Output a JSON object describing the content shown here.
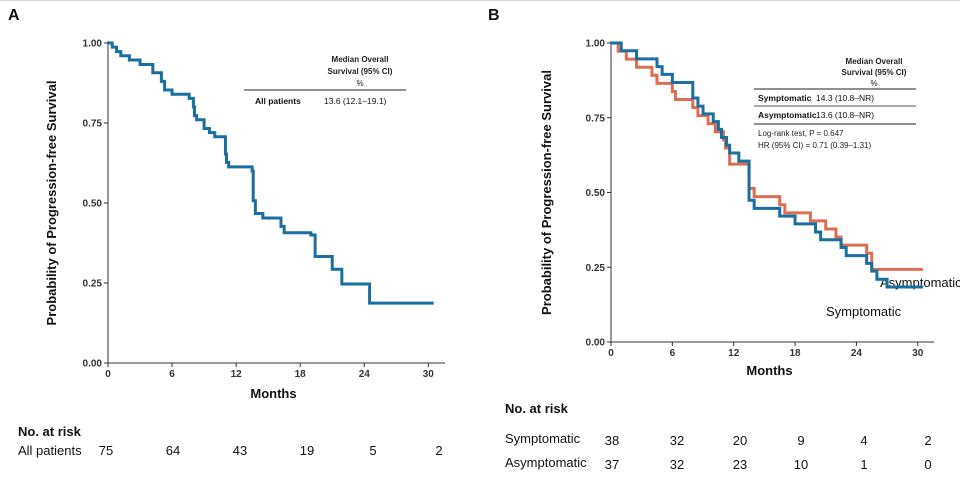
{
  "panels": {
    "a_label": "A",
    "b_label": "B"
  },
  "colors": {
    "symptomatic": "#1a6fa0",
    "asymptomatic": "#dd6e52",
    "all": "#1a6fa0",
    "axis": "#333333"
  },
  "risk_table": {
    "title": "No. at risk",
    "a": {
      "rows": [
        {
          "label": "All patients",
          "values": [
            "75",
            "64",
            "43",
            "19",
            "5",
            "2"
          ]
        }
      ]
    },
    "b": {
      "rows": [
        {
          "label": "Symptomatic",
          "values": [
            "38",
            "32",
            "20",
            "9",
            "4",
            "2"
          ]
        },
        {
          "label": "Asymptomatic",
          "values": [
            "37",
            "32",
            "23",
            "10",
            "1",
            "0"
          ]
        }
      ]
    }
  },
  "chart_data": [
    {
      "type": "line",
      "subtype": "kaplan-meier",
      "panel": "A",
      "xlabel": "Months",
      "ylabel": "Probability of Progression-free Survival",
      "xlim": [
        0,
        31
      ],
      "ylim": [
        0,
        1
      ],
      "xticks": [
        0,
        6,
        12,
        18,
        24,
        30
      ],
      "yticks": [
        "0.00",
        "0.25",
        "0.50",
        "0.75",
        "1.00"
      ],
      "series": [
        {
          "name": "All patients",
          "color_key": "all",
          "points": [
            [
              0,
              1.0
            ],
            [
              0.4,
              0.987
            ],
            [
              0.8,
              0.973
            ],
            [
              1.2,
              0.96
            ],
            [
              2,
              0.947
            ],
            [
              3,
              0.933
            ],
            [
              4.2,
              0.907
            ],
            [
              5,
              0.88
            ],
            [
              5.3,
              0.853
            ],
            [
              6,
              0.84
            ],
            [
              7.6,
              0.827
            ],
            [
              8,
              0.8
            ],
            [
              8.1,
              0.773
            ],
            [
              8.3,
              0.76
            ],
            [
              9,
              0.733
            ],
            [
              9.5,
              0.72
            ],
            [
              10,
              0.707
            ],
            [
              11,
              0.653
            ],
            [
              11.1,
              0.627
            ],
            [
              11.3,
              0.613
            ],
            [
              12.5,
              0.613
            ],
            [
              13.5,
              0.6
            ],
            [
              13.6,
              0.507
            ],
            [
              13.8,
              0.467
            ],
            [
              14.5,
              0.453
            ],
            [
              16.2,
              0.427
            ],
            [
              16.5,
              0.407
            ],
            [
              19,
              0.4
            ],
            [
              19.4,
              0.333
            ],
            [
              21,
              0.293
            ],
            [
              21.9,
              0.247
            ],
            [
              24.5,
              0.187
            ],
            [
              30.5,
              0.187
            ]
          ]
        }
      ],
      "legend_table": {
        "header": [
          "Median Overall",
          "Survival (95% CI)",
          "%"
        ],
        "rows": [
          [
            "All patients",
            "13.6 (12.1–19.1)"
          ]
        ]
      }
    },
    {
      "type": "line",
      "subtype": "kaplan-meier",
      "panel": "B",
      "xlabel": "Months",
      "ylabel": "Probability of Progression-free Survival",
      "xlim": [
        0,
        31
      ],
      "ylim": [
        0,
        1
      ],
      "xticks": [
        0,
        6,
        12,
        18,
        24,
        30
      ],
      "yticks": [
        "0.00",
        "0.25",
        "0.50",
        "0.75",
        "1.00"
      ],
      "series": [
        {
          "name": "Asymptomatic",
          "color_key": "asymptomatic",
          "end_label": "Asymptomatic",
          "points": [
            [
              0,
              1.0
            ],
            [
              0.7,
              0.973
            ],
            [
              1.5,
              0.946
            ],
            [
              2.5,
              0.919
            ],
            [
              4,
              0.892
            ],
            [
              4.5,
              0.865
            ],
            [
              6,
              0.838
            ],
            [
              6.3,
              0.811
            ],
            [
              8,
              0.784
            ],
            [
              8.5,
              0.757
            ],
            [
              9.5,
              0.73
            ],
            [
              10.2,
              0.703
            ],
            [
              11,
              0.676
            ],
            [
              11.2,
              0.649
            ],
            [
              11.6,
              0.595
            ],
            [
              12.5,
              0.595
            ],
            [
              13.5,
              0.514
            ],
            [
              14,
              0.486
            ],
            [
              15,
              0.486
            ],
            [
              16.5,
              0.459
            ],
            [
              17,
              0.432
            ],
            [
              19.5,
              0.405
            ],
            [
              21,
              0.378
            ],
            [
              22,
              0.351
            ],
            [
              22.5,
              0.324
            ],
            [
              25,
              0.297
            ],
            [
              25.5,
              0.243
            ],
            [
              30.5,
              0.243
            ]
          ]
        },
        {
          "name": "Symptomatic",
          "color_key": "symptomatic",
          "end_label": "Symptomatic",
          "points": [
            [
              0,
              1.0
            ],
            [
              1,
              0.974
            ],
            [
              2.5,
              0.947
            ],
            [
              4.5,
              0.921
            ],
            [
              5,
              0.895
            ],
            [
              6,
              0.868
            ],
            [
              8,
              0.816
            ],
            [
              8.5,
              0.789
            ],
            [
              9,
              0.763
            ],
            [
              10,
              0.737
            ],
            [
              10.5,
              0.711
            ],
            [
              10.8,
              0.684
            ],
            [
              11.3,
              0.658
            ],
            [
              11.6,
              0.632
            ],
            [
              12.5,
              0.605
            ],
            [
              13.5,
              0.474
            ],
            [
              14,
              0.447
            ],
            [
              16.5,
              0.421
            ],
            [
              18,
              0.395
            ],
            [
              20,
              0.368
            ],
            [
              20.5,
              0.342
            ],
            [
              22.5,
              0.316
            ],
            [
              23,
              0.289
            ],
            [
              25,
              0.263
            ],
            [
              25.5,
              0.237
            ],
            [
              26,
              0.21
            ],
            [
              27,
              0.184
            ],
            [
              30.5,
              0.184
            ]
          ]
        }
      ],
      "legend_table": {
        "header": [
          "Median Overall",
          "Survival (95% CI)",
          "%"
        ],
        "rows": [
          [
            "Symptomatic",
            "14.3 (10.8–NR)"
          ],
          [
            "Asymptomatic",
            "13.6 (10.8–NR)"
          ]
        ]
      },
      "annotations": [
        "Log-rank test, P = 0.647",
        "HR (95% CI) = 0.71 (0.39–1.31)"
      ]
    }
  ]
}
